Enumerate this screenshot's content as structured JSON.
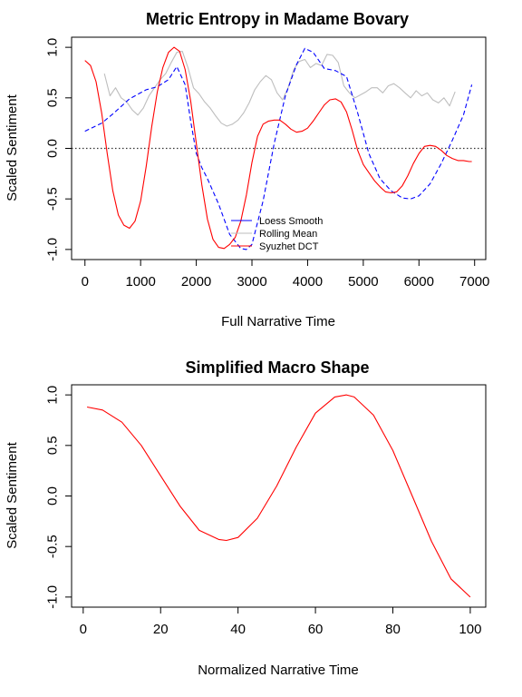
{
  "chart_data": [
    {
      "type": "line",
      "title": "Metric Entropy in Madame Bovary",
      "xlabel": "Full Narrative Time",
      "ylabel": "Scaled Sentiment",
      "xlim": [
        -240,
        7200
      ],
      "ylim": [
        -1.1,
        1.1
      ],
      "xticks": [
        0,
        1000,
        2000,
        3000,
        4000,
        5000,
        6000,
        7000
      ],
      "yticks": [
        -1.0,
        -0.5,
        0.0,
        0.5,
        1.0
      ],
      "xtick_labels": [
        "0",
        "1000",
        "2000",
        "3000",
        "4000",
        "5000",
        "6000",
        "7000"
      ],
      "ytick_labels": [
        "-1.0",
        "-0.5",
        "0.0",
        "0.5",
        "1.0"
      ],
      "grid": false,
      "reference_line": {
        "y": 0,
        "style": "dotted",
        "color": "#333333"
      },
      "legend": {
        "position": "bottom-center",
        "entries": [
          {
            "label": "Loess Smooth",
            "color": "#0000ff"
          },
          {
            "label": "Rolling Mean",
            "color": "#bebebe"
          },
          {
            "label": "Syuzhet DCT",
            "color": "#ff0000"
          }
        ]
      },
      "series": [
        {
          "key": "rolling",
          "color": "#bebebe",
          "style": "solid",
          "x": [
            350,
            450,
            550,
            650,
            750,
            850,
            950,
            1050,
            1150,
            1250,
            1350,
            1450,
            1550,
            1650,
            1750,
            1850,
            1950,
            2050,
            2150,
            2250,
            2350,
            2450,
            2550,
            2650,
            2750,
            2850,
            2950,
            3050,
            3150,
            3250,
            3350,
            3450,
            3550,
            3650,
            3750,
            3850,
            3950,
            4050,
            4150,
            4250,
            4350,
            4450,
            4550,
            4650,
            4750,
            4850,
            4950,
            5050,
            5150,
            5250,
            5350,
            5450,
            5550,
            5650,
            5750,
            5850,
            5950,
            6050,
            6150,
            6250,
            6350,
            6450,
            6550,
            6650
          ],
          "y": [
            0.74,
            0.52,
            0.6,
            0.5,
            0.46,
            0.38,
            0.33,
            0.4,
            0.52,
            0.6,
            0.68,
            0.74,
            0.85,
            0.95,
            0.96,
            0.8,
            0.6,
            0.54,
            0.46,
            0.4,
            0.32,
            0.25,
            0.22,
            0.24,
            0.28,
            0.35,
            0.45,
            0.58,
            0.66,
            0.72,
            0.68,
            0.55,
            0.48,
            0.6,
            0.78,
            0.86,
            0.88,
            0.8,
            0.84,
            0.82,
            0.93,
            0.92,
            0.85,
            0.62,
            0.55,
            0.5,
            0.53,
            0.56,
            0.6,
            0.6,
            0.55,
            0.62,
            0.64,
            0.6,
            0.55,
            0.5,
            0.57,
            0.52,
            0.55,
            0.48,
            0.45,
            0.5,
            0.42,
            0.56
          ]
        },
        {
          "key": "loess",
          "color": "#0000ff",
          "style": "dashed",
          "x": [
            0,
            300,
            500,
            800,
            1100,
            1300,
            1500,
            1650,
            1800,
            1900,
            2000,
            2100,
            2200,
            2400,
            2600,
            2800,
            2900,
            3000,
            3200,
            3400,
            3600,
            3800,
            3950,
            4100,
            4300,
            4500,
            4700,
            4900,
            5100,
            5300,
            5500,
            5700,
            5850,
            6000,
            6200,
            6400,
            6600,
            6800,
            6950
          ],
          "y": [
            0.17,
            0.25,
            0.34,
            0.49,
            0.58,
            0.61,
            0.68,
            0.81,
            0.63,
            0.27,
            -0.05,
            -0.19,
            -0.3,
            -0.55,
            -0.85,
            -0.99,
            -1.0,
            -0.95,
            -0.52,
            0.05,
            0.52,
            0.83,
            0.99,
            0.95,
            0.79,
            0.77,
            0.71,
            0.35,
            -0.05,
            -0.3,
            -0.42,
            -0.49,
            -0.5,
            -0.47,
            -0.35,
            -0.15,
            0.08,
            0.33,
            0.63
          ]
        },
        {
          "key": "dct",
          "color": "#ff0000",
          "style": "solid",
          "x": [
            0,
            100,
            200,
            300,
            400,
            500,
            600,
            700,
            800,
            900,
            1000,
            1100,
            1200,
            1300,
            1400,
            1500,
            1600,
            1700,
            1800,
            1900,
            2000,
            2100,
            2200,
            2300,
            2400,
            2500,
            2600,
            2700,
            2800,
            2900,
            3000,
            3100,
            3200,
            3300,
            3400,
            3500,
            3600,
            3700,
            3800,
            3900,
            4000,
            4100,
            4200,
            4300,
            4400,
            4500,
            4600,
            4700,
            4800,
            4900,
            5000,
            5100,
            5200,
            5300,
            5400,
            5500,
            5600,
            5700,
            5800,
            5900,
            6000,
            6100,
            6200,
            6300,
            6400,
            6500,
            6600,
            6700,
            6800,
            6900,
            6950
          ],
          "y": [
            0.87,
            0.82,
            0.66,
            0.35,
            -0.05,
            -0.42,
            -0.66,
            -0.76,
            -0.79,
            -0.72,
            -0.52,
            -0.18,
            0.22,
            0.56,
            0.8,
            0.95,
            1.0,
            0.96,
            0.78,
            0.47,
            0.05,
            -0.36,
            -0.7,
            -0.9,
            -0.98,
            -0.99,
            -0.95,
            -0.88,
            -0.72,
            -0.46,
            -0.14,
            0.12,
            0.24,
            0.27,
            0.28,
            0.28,
            0.24,
            0.19,
            0.16,
            0.17,
            0.2,
            0.27,
            0.35,
            0.43,
            0.48,
            0.49,
            0.46,
            0.36,
            0.18,
            -0.02,
            -0.16,
            -0.24,
            -0.32,
            -0.38,
            -0.43,
            -0.44,
            -0.43,
            -0.37,
            -0.27,
            -0.15,
            -0.05,
            0.02,
            0.03,
            0.02,
            -0.02,
            -0.07,
            -0.1,
            -0.12,
            -0.12,
            -0.13,
            -0.13
          ]
        }
      ]
    },
    {
      "type": "line",
      "title": "Simplified Macro Shape",
      "xlabel": "Normalized Narrative Time",
      "ylabel": "Scaled Sentiment",
      "xlim": [
        -3,
        104
      ],
      "ylim": [
        -1.1,
        1.1
      ],
      "xticks": [
        0,
        20,
        40,
        60,
        80,
        100
      ],
      "yticks": [
        -1.0,
        -0.5,
        0.0,
        0.5,
        1.0
      ],
      "xtick_labels": [
        "0",
        "20",
        "40",
        "60",
        "80",
        "100"
      ],
      "ytick_labels": [
        "-1.0",
        "-0.5",
        "0.0",
        "0.5",
        "1.0"
      ],
      "grid": false,
      "series": [
        {
          "key": "macro",
          "color": "#ff0000",
          "style": "solid",
          "x": [
            1,
            5,
            10,
            15,
            20,
            25,
            30,
            35,
            37,
            40,
            45,
            50,
            55,
            60,
            65,
            68,
            70,
            75,
            80,
            85,
            90,
            95,
            100
          ],
          "y": [
            0.88,
            0.85,
            0.73,
            0.5,
            0.2,
            -0.1,
            -0.34,
            -0.43,
            -0.44,
            -0.41,
            -0.22,
            0.1,
            0.48,
            0.82,
            0.98,
            1.0,
            0.98,
            0.8,
            0.45,
            0.0,
            -0.45,
            -0.82,
            -1.0
          ]
        }
      ]
    }
  ]
}
